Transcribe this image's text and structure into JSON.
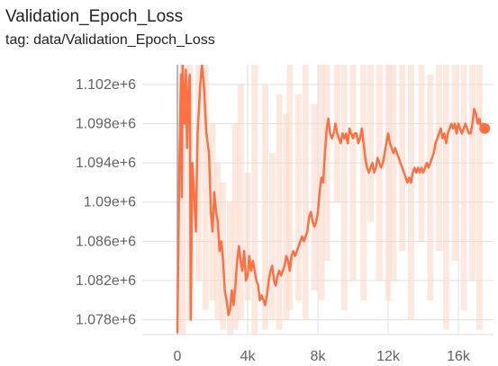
{
  "title": "Validation_Epoch_Loss",
  "tag": "tag: data/Validation_Epoch_Loss",
  "colors": {
    "line": "#ff7043",
    "raw_line": "#fcd5c7",
    "grid": "#e0e0e0",
    "zero_axis": "#9e9e9e",
    "tick_text": "#616161",
    "title_text": "#212121"
  },
  "chart_data": {
    "type": "line",
    "title": "Validation_Epoch_Loss",
    "xlabel": "",
    "ylabel": "",
    "xlim": [
      -2000,
      18000
    ],
    "ylim": [
      1076500,
      1104000
    ],
    "x_ticks": [
      {
        "value": 0,
        "label": "0"
      },
      {
        "value": 4000,
        "label": "4k"
      },
      {
        "value": 8000,
        "label": "8k"
      },
      {
        "value": 12000,
        "label": "12k"
      },
      {
        "value": 16000,
        "label": "16k"
      }
    ],
    "y_ticks": [
      {
        "value": 1078000,
        "label": "1.078e+6"
      },
      {
        "value": 1082000,
        "label": "1.082e+6"
      },
      {
        "value": 1086000,
        "label": "1.086e+6"
      },
      {
        "value": 1090000,
        "label": "1.09e+6"
      },
      {
        "value": 1094000,
        "label": "1.094e+6"
      },
      {
        "value": 1098000,
        "label": "1.098e+6"
      },
      {
        "value": 1102000,
        "label": "1.102e+6"
      }
    ],
    "grid": true,
    "series": [
      {
        "values": [
          [
            0,
            1076700
          ],
          [
            100,
            1092000
          ],
          [
            200,
            1103000
          ],
          [
            250,
            1090500
          ],
          [
            300,
            1104000
          ],
          [
            400,
            1098000
          ],
          [
            480,
            1103500
          ],
          [
            550,
            1095500
          ],
          [
            620,
            1101000
          ],
          [
            700,
            1103000
          ],
          [
            760,
            1078000
          ],
          [
            850,
            1094000
          ],
          [
            950,
            1091000
          ],
          [
            1050,
            1087000
          ],
          [
            1150,
            1097000
          ],
          [
            1300,
            1102000
          ],
          [
            1400,
            1104000
          ],
          [
            1500,
            1102000
          ],
          [
            1650,
            1097000
          ],
          [
            1800,
            1095000
          ],
          [
            1900,
            1089000
          ],
          [
            2000,
            1087000
          ],
          [
            2100,
            1091000
          ],
          [
            2200,
            1089000
          ],
          [
            2300,
            1088000
          ],
          [
            2400,
            1085000
          ],
          [
            2500,
            1086000
          ],
          [
            2600,
            1084000
          ],
          [
            2700,
            1081000
          ],
          [
            2800,
            1080000
          ],
          [
            2900,
            1078500
          ],
          [
            3000,
            1079000
          ],
          [
            3100,
            1081000
          ],
          [
            3200,
            1079500
          ],
          [
            3300,
            1081500
          ],
          [
            3400,
            1084000
          ],
          [
            3500,
            1085500
          ],
          [
            3600,
            1084000
          ],
          [
            3700,
            1083000
          ],
          [
            3800,
            1085000
          ],
          [
            3900,
            1082000
          ],
          [
            4000,
            1082500
          ],
          [
            4100,
            1084500
          ],
          [
            4200,
            1083000
          ],
          [
            4300,
            1084000
          ],
          [
            4400,
            1083000
          ],
          [
            4500,
            1082000
          ],
          [
            4600,
            1081500
          ],
          [
            4700,
            1080000
          ],
          [
            4800,
            1080500
          ],
          [
            4900,
            1080000
          ],
          [
            5000,
            1079500
          ],
          [
            5100,
            1080500
          ],
          [
            5200,
            1082000
          ],
          [
            5300,
            1083000
          ],
          [
            5400,
            1083500
          ],
          [
            5500,
            1082000
          ],
          [
            5600,
            1081500
          ],
          [
            5700,
            1082500
          ],
          [
            5800,
            1083000
          ],
          [
            5900,
            1082500
          ],
          [
            6000,
            1083000
          ],
          [
            6100,
            1083500
          ],
          [
            6200,
            1084500
          ],
          [
            6300,
            1084000
          ],
          [
            6400,
            1083000
          ],
          [
            6500,
            1084500
          ],
          [
            6600,
            1085000
          ],
          [
            6700,
            1084500
          ],
          [
            6800,
            1085000
          ],
          [
            6900,
            1085500
          ],
          [
            7000,
            1086000
          ],
          [
            7100,
            1086500
          ],
          [
            7200,
            1086000
          ],
          [
            7300,
            1086500
          ],
          [
            7400,
            1087000
          ],
          [
            7500,
            1088500
          ],
          [
            7600,
            1089000
          ],
          [
            7700,
            1088000
          ],
          [
            7800,
            1087500
          ],
          [
            7900,
            1088000
          ],
          [
            8000,
            1089000
          ],
          [
            8100,
            1091000
          ],
          [
            8200,
            1092500
          ],
          [
            8300,
            1092000
          ],
          [
            8400,
            1095000
          ],
          [
            8500,
            1097500
          ],
          [
            8600,
            1098500
          ],
          [
            8700,
            1097000
          ],
          [
            8800,
            1096500
          ],
          [
            8900,
            1097000
          ],
          [
            9000,
            1098000
          ],
          [
            9100,
            1097000
          ],
          [
            9200,
            1096500
          ],
          [
            9300,
            1096000
          ],
          [
            9400,
            1097000
          ],
          [
            9500,
            1096500
          ],
          [
            9600,
            1097000
          ],
          [
            9700,
            1096000
          ],
          [
            9800,
            1097500
          ],
          [
            9900,
            1097000
          ],
          [
            10000,
            1096500
          ],
          [
            10100,
            1097000
          ],
          [
            10200,
            1097000
          ],
          [
            10300,
            1096000
          ],
          [
            10400,
            1096500
          ],
          [
            10500,
            1097500
          ],
          [
            10600,
            1096000
          ],
          [
            10700,
            1094500
          ],
          [
            10800,
            1093500
          ],
          [
            10900,
            1093000
          ],
          [
            11000,
            1093500
          ],
          [
            11100,
            1094000
          ],
          [
            11200,
            1093000
          ],
          [
            11300,
            1093500
          ],
          [
            11400,
            1094500
          ],
          [
            11500,
            1094000
          ],
          [
            11600,
            1093500
          ],
          [
            11700,
            1094000
          ],
          [
            11800,
            1095000
          ],
          [
            11900,
            1096000
          ],
          [
            12000,
            1097000
          ],
          [
            12100,
            1096000
          ],
          [
            12200,
            1095500
          ],
          [
            12300,
            1095000
          ],
          [
            12400,
            1095500
          ],
          [
            12500,
            1095000
          ],
          [
            12600,
            1094500
          ],
          [
            12700,
            1094000
          ],
          [
            12800,
            1093500
          ],
          [
            12900,
            1093000
          ],
          [
            13000,
            1092500
          ],
          [
            13100,
            1092000
          ],
          [
            13200,
            1092500
          ],
          [
            13300,
            1092000
          ],
          [
            13400,
            1093000
          ],
          [
            13500,
            1093500
          ],
          [
            13600,
            1093000
          ],
          [
            13700,
            1093500
          ],
          [
            13800,
            1093000
          ],
          [
            13900,
            1093500
          ],
          [
            14000,
            1093000
          ],
          [
            14100,
            1093500
          ],
          [
            14200,
            1094000
          ],
          [
            14300,
            1093500
          ],
          [
            14400,
            1094000
          ],
          [
            14500,
            1094500
          ],
          [
            14600,
            1095000
          ],
          [
            14700,
            1096000
          ],
          [
            14800,
            1096500
          ],
          [
            14900,
            1097000
          ],
          [
            15000,
            1097500
          ],
          [
            15100,
            1096500
          ],
          [
            15200,
            1097000
          ],
          [
            15300,
            1096000
          ],
          [
            15400,
            1097000
          ],
          [
            15500,
            1097500
          ],
          [
            15600,
            1098000
          ],
          [
            15700,
            1097500
          ],
          [
            15800,
            1098000
          ],
          [
            15900,
            1097000
          ],
          [
            16000,
            1098000
          ],
          [
            16100,
            1097500
          ],
          [
            16200,
            1097000
          ],
          [
            16300,
            1097500
          ],
          [
            16400,
            1098000
          ],
          [
            16500,
            1097500
          ],
          [
            16600,
            1097000
          ],
          [
            16700,
            1097000
          ],
          [
            16800,
            1098000
          ],
          [
            16900,
            1099500
          ],
          [
            17000,
            1099000
          ],
          [
            17100,
            1098000
          ],
          [
            17200,
            1098500
          ],
          [
            17300,
            1097500
          ],
          [
            17400,
            1098000
          ],
          [
            17500,
            1097500
          ]
        ],
        "raw_spikes": [
          [
            300,
            1076500,
            1104000
          ],
          [
            700,
            1078000,
            1104000
          ],
          [
            1200,
            1082000,
            1104000
          ],
          [
            1600,
            1079000,
            1104000
          ],
          [
            2000,
            1080000,
            1098000
          ],
          [
            2300,
            1078000,
            1094000
          ],
          [
            2600,
            1077000,
            1092000
          ],
          [
            3000,
            1076500,
            1090000
          ],
          [
            3300,
            1077000,
            1098000
          ],
          [
            3600,
            1078000,
            1102000
          ],
          [
            4000,
            1080000,
            1093000
          ],
          [
            4400,
            1076500,
            1104000
          ],
          [
            5000,
            1077000,
            1102000
          ],
          [
            5400,
            1078000,
            1095000
          ],
          [
            5800,
            1077000,
            1101000
          ],
          [
            6200,
            1078000,
            1099000
          ],
          [
            6400,
            1079000,
            1104000
          ],
          [
            6900,
            1080000,
            1101000
          ],
          [
            7300,
            1078000,
            1104000
          ],
          [
            7800,
            1081000,
            1100000
          ],
          [
            8200,
            1080000,
            1104000
          ],
          [
            8500,
            1084000,
            1104000
          ],
          [
            9100,
            1090000,
            1104000
          ],
          [
            9500,
            1079000,
            1104000
          ],
          [
            10000,
            1082000,
            1104000
          ],
          [
            10600,
            1080000,
            1104000
          ],
          [
            11000,
            1088000,
            1104000
          ],
          [
            11500,
            1082000,
            1104000
          ],
          [
            12000,
            1080000,
            1104000
          ],
          [
            12300,
            1082000,
            1104000
          ],
          [
            12800,
            1085000,
            1104000
          ],
          [
            13300,
            1078000,
            1104000
          ],
          [
            13900,
            1086000,
            1104000
          ],
          [
            14400,
            1080000,
            1103000
          ],
          [
            14900,
            1085000,
            1104000
          ],
          [
            15300,
            1077000,
            1104000
          ],
          [
            15800,
            1084000,
            1104000
          ],
          [
            16300,
            1079000,
            1104000
          ],
          [
            16800,
            1082000,
            1104000
          ],
          [
            17200,
            1077000,
            1104000
          ]
        ]
      }
    ]
  }
}
